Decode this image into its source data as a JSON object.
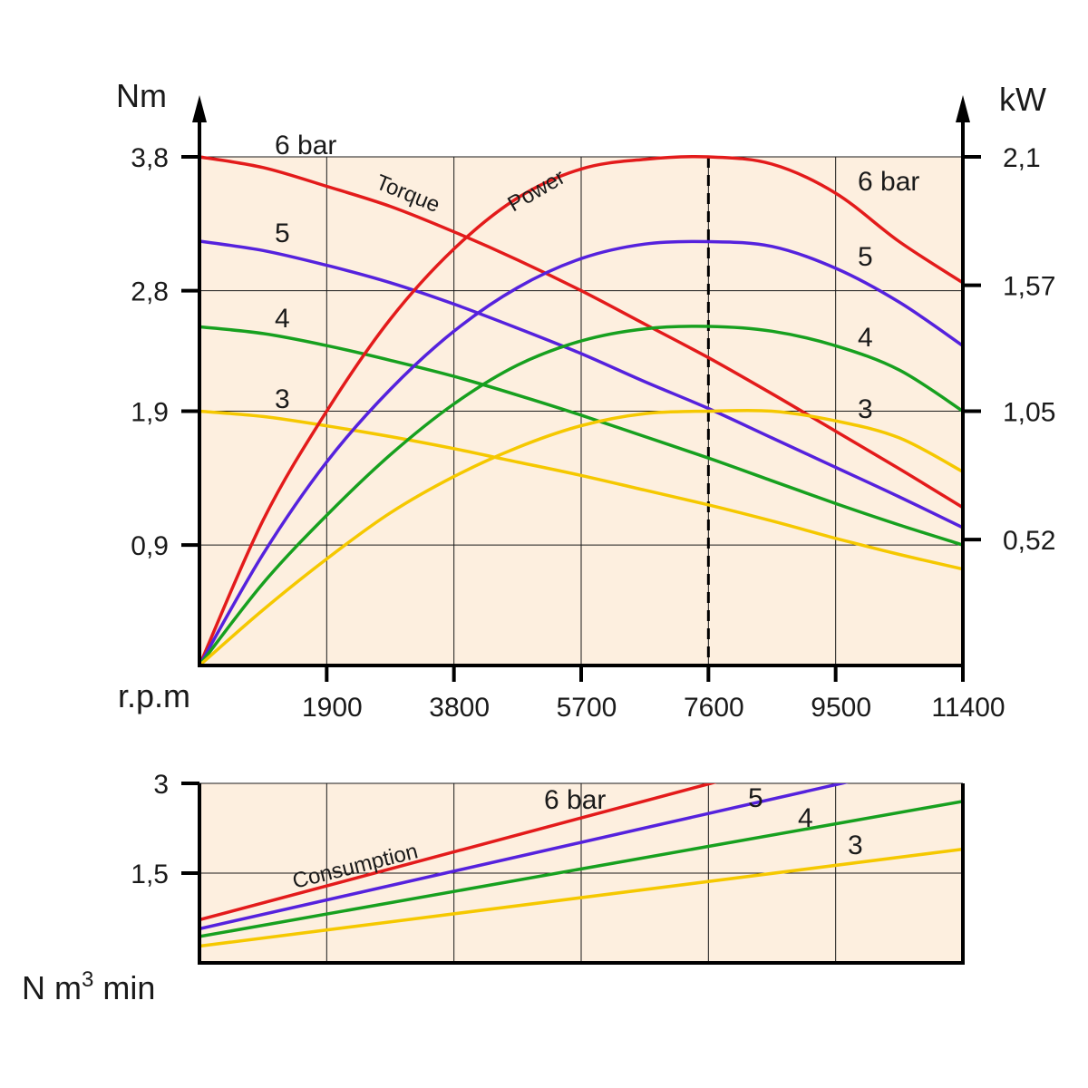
{
  "colors": {
    "background": "#ffffff",
    "plot_fill": "#fdefdf",
    "grid": "#1a1a1a",
    "axis": "#000000",
    "bar6": "#e31b1b",
    "bar5": "#5522dd",
    "bar4": "#17a01f",
    "bar3": "#f5c800"
  },
  "chart_data": [
    {
      "type": "line",
      "x_unit_label": "r.p.m",
      "y_left_unit": "Nm",
      "y_right_unit": "kW",
      "x_ticks": [
        "1900",
        "3800",
        "5700",
        "7600",
        "9500",
        "11400"
      ],
      "x_range": [
        0,
        11400
      ],
      "y_left_ticks": [
        "0,9",
        "1,9",
        "2,8",
        "3,8"
      ],
      "y_left_range": [
        0,
        3.8
      ],
      "y_right_ticks": [
        "0,52",
        "1,05",
        "1,57",
        "2,1"
      ],
      "y_right_range": [
        0,
        2.1
      ],
      "grid": true,
      "marker_line_x": 7600,
      "annotations": {
        "torque": "Torque",
        "power": "Power"
      },
      "torque_labels": [
        "6 bar",
        "5",
        "4",
        "3"
      ],
      "power_labels": [
        "6 bar",
        "5",
        "4",
        "3"
      ],
      "x": [
        0,
        950,
        1900,
        2850,
        3800,
        4750,
        5700,
        6650,
        7600,
        8550,
        9500,
        10450,
        11400
      ],
      "torque_series": [
        {
          "pressure": "6",
          "color_key": "bar6",
          "values": [
            3.8,
            3.72,
            3.58,
            3.43,
            3.24,
            3.03,
            2.8,
            2.55,
            2.3,
            2.03,
            1.75,
            1.47,
            1.18
          ]
        },
        {
          "pressure": "5",
          "color_key": "bar5",
          "values": [
            3.17,
            3.1,
            2.99,
            2.86,
            2.7,
            2.52,
            2.33,
            2.12,
            1.92,
            1.7,
            1.48,
            1.26,
            1.03
          ]
        },
        {
          "pressure": "4",
          "color_key": "bar4",
          "values": [
            2.53,
            2.48,
            2.39,
            2.28,
            2.16,
            2.02,
            1.87,
            1.71,
            1.55,
            1.38,
            1.21,
            1.05,
            0.9
          ]
        },
        {
          "pressure": "3",
          "color_key": "bar3",
          "values": [
            1.9,
            1.86,
            1.79,
            1.71,
            1.62,
            1.52,
            1.42,
            1.31,
            1.2,
            1.08,
            0.95,
            0.83,
            0.72
          ]
        }
      ],
      "power_series": [
        {
          "pressure": "6",
          "color_key": "bar6",
          "values": [
            0.0,
            0.6,
            1.05,
            1.43,
            1.72,
            1.93,
            2.05,
            2.09,
            2.1,
            2.07,
            1.95,
            1.75,
            1.58
          ]
        },
        {
          "pressure": "5",
          "color_key": "bar5",
          "values": [
            0.0,
            0.46,
            0.84,
            1.14,
            1.38,
            1.56,
            1.68,
            1.74,
            1.75,
            1.73,
            1.64,
            1.5,
            1.32
          ]
        },
        {
          "pressure": "4",
          "color_key": "bar4",
          "values": [
            0.0,
            0.34,
            0.62,
            0.87,
            1.08,
            1.24,
            1.34,
            1.39,
            1.4,
            1.38,
            1.32,
            1.22,
            1.05
          ]
        },
        {
          "pressure": "3",
          "color_key": "bar3",
          "values": [
            0.0,
            0.23,
            0.44,
            0.63,
            0.78,
            0.9,
            0.99,
            1.04,
            1.05,
            1.05,
            1.01,
            0.94,
            0.8
          ]
        }
      ]
    },
    {
      "type": "line",
      "annotation": "Consumption",
      "y_unit_label": "N m",
      "y_unit_sup": "3",
      "y_unit_suffix": " min",
      "y_ticks": [
        "1,5",
        "3"
      ],
      "y_range": [
        0,
        3
      ],
      "x_range": [
        0,
        11400
      ],
      "grid": true,
      "series_labels": [
        "6 bar",
        "5",
        "4",
        "3"
      ],
      "series": [
        {
          "pressure": "6",
          "color_key": "bar6",
          "x": [
            0,
            7970
          ],
          "values": [
            0.72,
            3.1
          ]
        },
        {
          "pressure": "5",
          "color_key": "bar5",
          "x": [
            0,
            10180
          ],
          "values": [
            0.57,
            3.15
          ]
        },
        {
          "pressure": "4",
          "color_key": "bar4",
          "x": [
            0,
            11400
          ],
          "values": [
            0.44,
            2.7
          ]
        },
        {
          "pressure": "3",
          "color_key": "bar3",
          "x": [
            0,
            11400
          ],
          "values": [
            0.28,
            1.9
          ]
        }
      ]
    }
  ]
}
